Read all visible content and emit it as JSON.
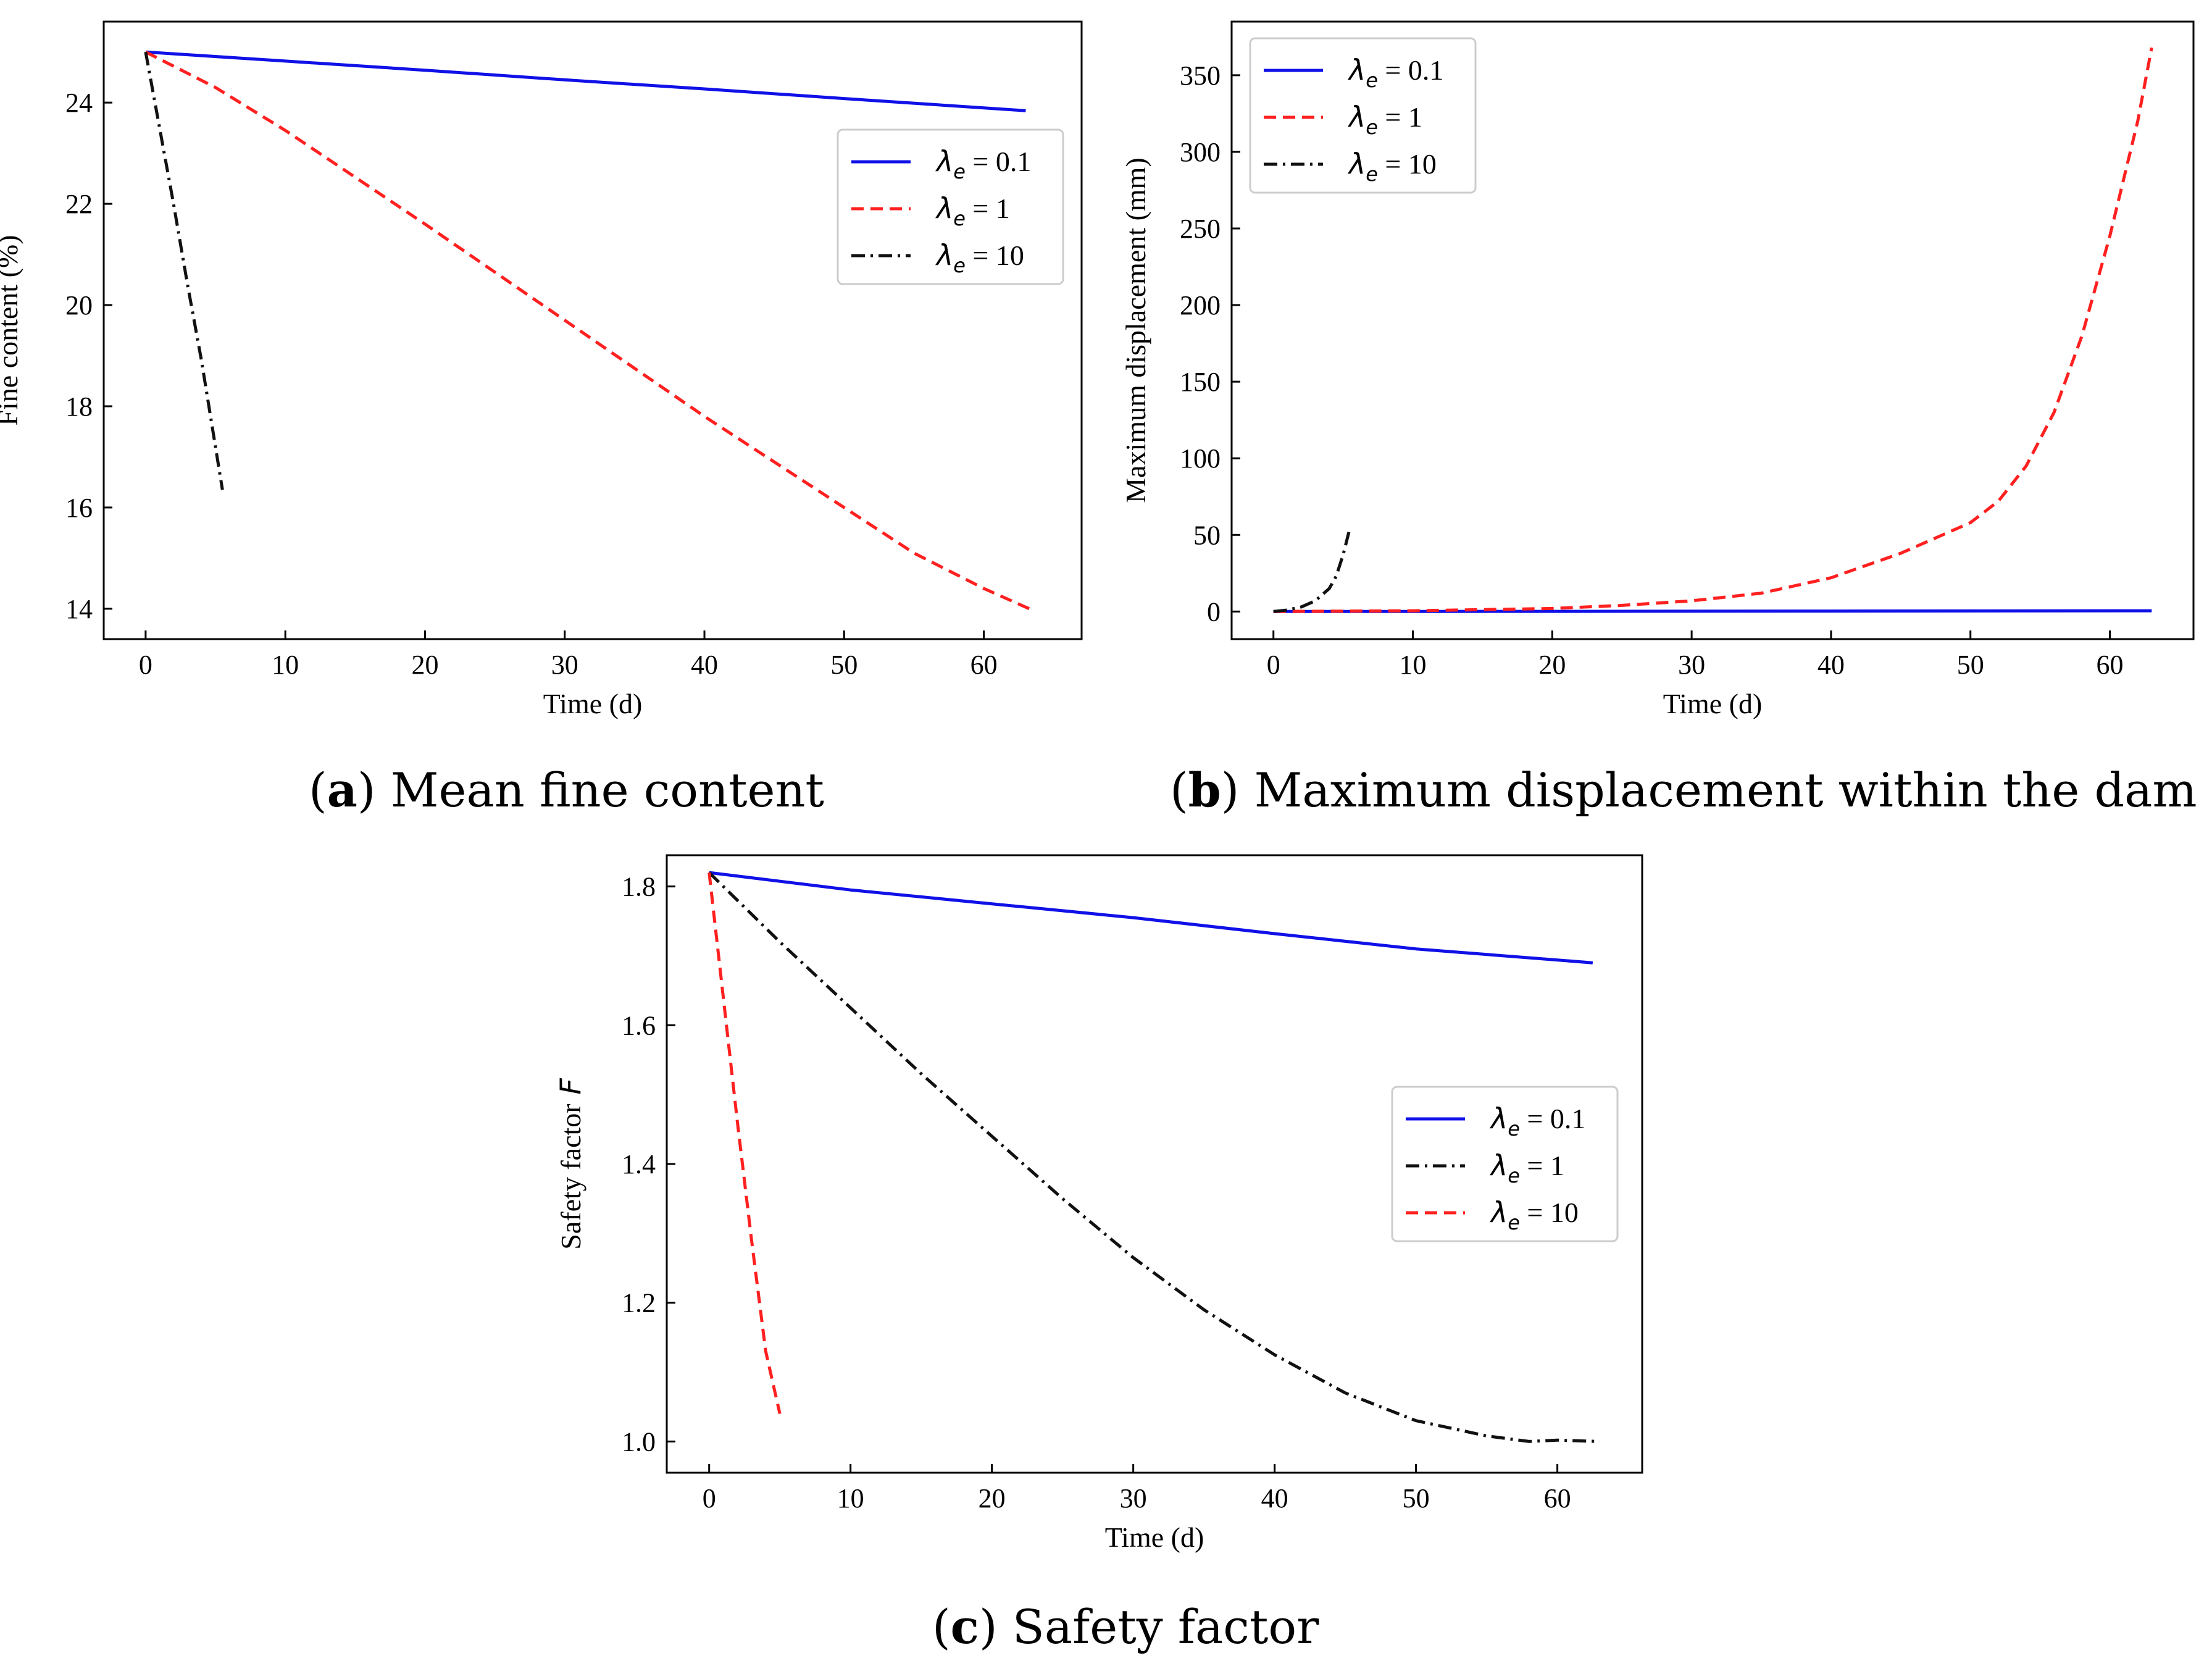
{
  "chart_data": [
    {
      "id": "a",
      "type": "line",
      "caption_letter": "a",
      "caption_text": "Mean fine content",
      "xlabel": "Time (d)",
      "ylabel": "Fine content (%)",
      "xlim": [
        -3,
        67
      ],
      "ylim": [
        13.4,
        25.6
      ],
      "xticks": [
        0,
        10,
        20,
        30,
        40,
        50,
        60
      ],
      "yticks": [
        14,
        16,
        18,
        20,
        22,
        24
      ],
      "legend_position": "upper-right",
      "series": [
        {
          "name_symbol": "λ",
          "name_sub": "e",
          "name_value": " = 0.1",
          "color": "#1010e8",
          "dash": "solid",
          "x": [
            0,
            10,
            20,
            30,
            40,
            50,
            63
          ],
          "y": [
            25.0,
            24.82,
            24.64,
            24.45,
            24.27,
            24.08,
            23.84
          ]
        },
        {
          "name_symbol": "λ",
          "name_sub": "e",
          "name_value": " = 1",
          "color": "#ff2020",
          "dash": "dashed",
          "x": [
            0,
            5,
            10,
            20,
            30,
            40,
            50,
            55,
            60,
            63.5
          ],
          "y": [
            25.0,
            24.3,
            23.45,
            21.6,
            19.7,
            17.8,
            16.0,
            15.1,
            14.4,
            13.97
          ]
        },
        {
          "name_symbol": "λ",
          "name_sub": "e",
          "name_value": " = 10",
          "color": "#111111",
          "dash": "dashdot",
          "x": [
            0,
            1,
            2,
            3,
            4,
            5,
            5.5
          ],
          "y": [
            25.0,
            23.5,
            22.0,
            20.4,
            18.9,
            17.2,
            16.35
          ]
        }
      ]
    },
    {
      "id": "b",
      "type": "line",
      "caption_letter": "b",
      "caption_text": "Maximum displacement within the dam",
      "xlabel": "Time (d)",
      "ylabel": "Maximum displacement (mm)",
      "xlim": [
        -3,
        66
      ],
      "ylim": [
        -18,
        385
      ],
      "xticks": [
        0,
        10,
        20,
        30,
        40,
        50,
        60
      ],
      "yticks": [
        0,
        50,
        100,
        150,
        200,
        250,
        300,
        350
      ],
      "legend_position": "upper-left",
      "series": [
        {
          "name_symbol": "λ",
          "name_sub": "e",
          "name_value": " = 0.1",
          "color": "#1010e8",
          "dash": "solid",
          "x": [
            0,
            20,
            40,
            63
          ],
          "y": [
            0,
            0.1,
            0.3,
            0.5
          ]
        },
        {
          "name_symbol": "λ",
          "name_sub": "e",
          "name_value": " = 1",
          "color": "#ff2020",
          "dash": "dashed",
          "x": [
            0,
            10,
            20,
            25,
            30,
            35,
            40,
            45,
            50,
            52,
            54,
            56,
            58,
            60,
            62,
            63
          ],
          "y": [
            0,
            0.5,
            2,
            4,
            7,
            12,
            22,
            38,
            58,
            72,
            95,
            130,
            180,
            245,
            320,
            368
          ]
        },
        {
          "name_symbol": "λ",
          "name_sub": "e",
          "name_value": " = 10",
          "color": "#111111",
          "dash": "dashdot",
          "x": [
            0,
            1,
            2,
            3,
            4,
            4.5,
            5,
            5.5
          ],
          "y": [
            0,
            1,
            3,
            7,
            15,
            23,
            37,
            55
          ]
        }
      ]
    },
    {
      "id": "c",
      "type": "line",
      "caption_letter": "c",
      "caption_text": "Safety factor",
      "xlabel": "Time (d)",
      "ylabel": "Safety factor",
      "ylabel_symbol": "F",
      "xlim": [
        -3,
        66
      ],
      "ylim": [
        0.955,
        1.845
      ],
      "xticks": [
        0,
        10,
        20,
        30,
        40,
        50,
        60
      ],
      "yticks": [
        1.0,
        1.2,
        1.4,
        1.6,
        1.8
      ],
      "yticks_labels": [
        "1.0",
        "1.2",
        "1.4",
        "1.6",
        "1.8"
      ],
      "legend_position": "center-right",
      "series": [
        {
          "name_symbol": "λ",
          "name_sub": "e",
          "name_value": " = 0.1",
          "color": "#1010e8",
          "dash": "solid",
          "x": [
            0,
            10,
            20,
            30,
            40,
            50,
            62.5
          ],
          "y": [
            1.82,
            1.795,
            1.775,
            1.755,
            1.732,
            1.71,
            1.69
          ]
        },
        {
          "name_symbol": "λ",
          "name_sub": "e",
          "name_value": " = 1",
          "color": "#111111",
          "dash": "dashdot",
          "x": [
            0,
            5,
            10,
            15,
            20,
            25,
            30,
            35,
            40,
            45,
            50,
            55,
            58,
            60,
            63
          ],
          "y": [
            1.82,
            1.72,
            1.625,
            1.53,
            1.44,
            1.35,
            1.265,
            1.19,
            1.125,
            1.07,
            1.03,
            1.008,
            1.0,
            1.002,
            1.0
          ]
        },
        {
          "name_symbol": "λ",
          "name_sub": "e",
          "name_value": " = 10",
          "color": "#ff2020",
          "dash": "dashed",
          "x": [
            0,
            1,
            2,
            3,
            4,
            5
          ],
          "y": [
            1.82,
            1.64,
            1.46,
            1.29,
            1.13,
            1.04
          ]
        }
      ]
    }
  ]
}
